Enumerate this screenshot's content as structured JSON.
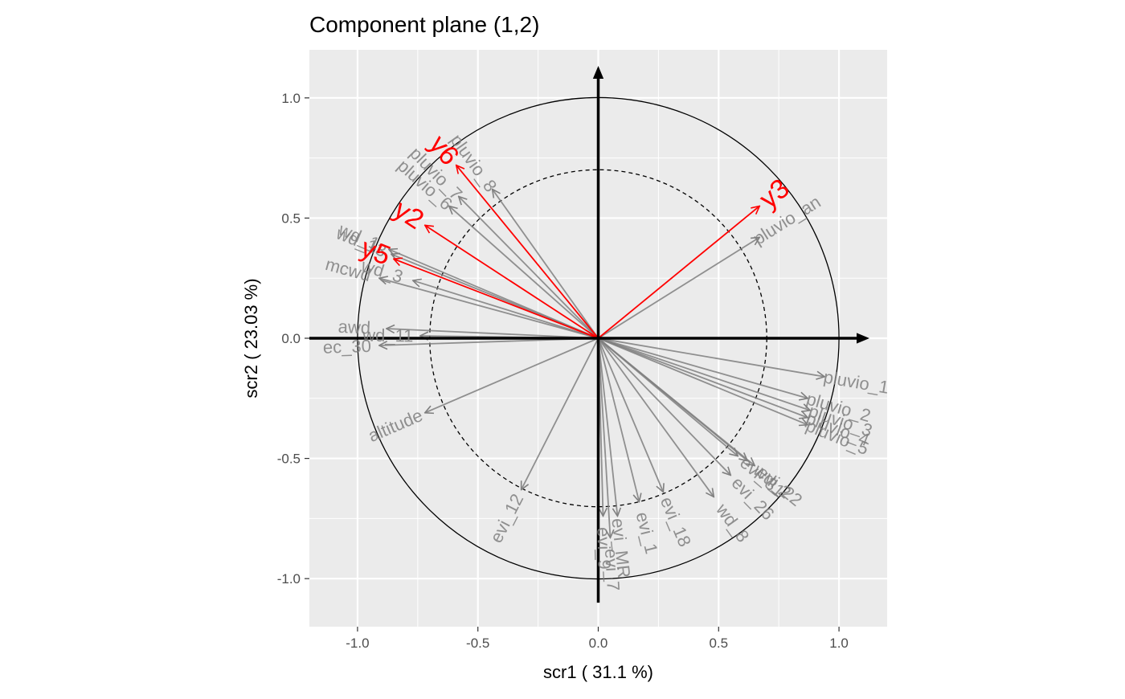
{
  "chart_data": {
    "type": "scatter",
    "subtype": "correlation-circle",
    "title": "Component plane (1,2)",
    "xlabel": "scr1 ( 31.1 %)",
    "ylabel": "scr2 ( 23.03 %)",
    "xlim": [
      -1.2,
      1.2
    ],
    "ylim": [
      -1.2,
      1.2
    ],
    "xticks": [
      -1.0,
      -0.5,
      0.0,
      0.5,
      1.0
    ],
    "yticks": [
      -1.0,
      -0.5,
      0.0,
      0.5,
      1.0
    ],
    "xtick_labels": [
      "-1.0",
      "-0.5",
      "0.0",
      "0.5",
      "1.0"
    ],
    "ytick_labels": [
      "-1.0",
      "-0.5",
      "0.0",
      "0.5",
      "1.0"
    ],
    "grid": true,
    "unit_circle_radius": 1.0,
    "inner_circle_radius": 0.7,
    "colors": {
      "panel": "#ebebeb",
      "grid": "#ffffff",
      "variables": "#7f7f7f",
      "responses": "#ff0000",
      "axes": "#000000"
    },
    "series": [
      {
        "kind": "variables",
        "points": [
          {
            "label": "pluvio_an",
            "x": 0.67,
            "y": 0.42
          },
          {
            "label": "pluvio_8",
            "x": -0.44,
            "y": 0.62
          },
          {
            "label": "pluvio_6",
            "x": -0.62,
            "y": 0.55
          },
          {
            "label": "pluvio_7",
            "x": -0.58,
            "y": 0.59
          },
          {
            "label": "wd_1",
            "x": -0.87,
            "y": 0.37
          },
          {
            "label": "wd_13",
            "x": -0.86,
            "y": 0.35
          },
          {
            "label": "mcwd",
            "x": -0.91,
            "y": 0.25
          },
          {
            "label": "wd_3",
            "x": -0.77,
            "y": 0.24
          },
          {
            "label": "awd",
            "x": -0.88,
            "y": 0.04
          },
          {
            "label": "wd_11",
            "x": -0.74,
            "y": 0.01
          },
          {
            "label": "ec_30",
            "x": -0.91,
            "y": -0.03
          },
          {
            "label": "altitude",
            "x": -0.72,
            "y": -0.31
          },
          {
            "label": "evi_12",
            "x": -0.32,
            "y": -0.63
          },
          {
            "label": "evi_9",
            "x": 0.02,
            "y": -0.74
          },
          {
            "label": "evi_MR",
            "x": 0.08,
            "y": -0.74
          },
          {
            "label": "evi_7",
            "x": 0.05,
            "y": -0.83
          },
          {
            "label": "evi_1",
            "x": 0.17,
            "y": -0.68
          },
          {
            "label": "evi_18",
            "x": 0.27,
            "y": -0.64
          },
          {
            "label": "wd_8",
            "x": 0.48,
            "y": -0.66
          },
          {
            "label": "evi_26",
            "x": 0.55,
            "y": -0.57
          },
          {
            "label": "wd_2",
            "x": 0.62,
            "y": -0.51
          },
          {
            "label": "evi_31",
            "x": 0.58,
            "y": -0.49
          },
          {
            "label": "evi_22",
            "x": 0.65,
            "y": -0.53
          },
          {
            "label": "pluvio_1",
            "x": 0.94,
            "y": -0.16
          },
          {
            "label": "pluvio_2",
            "x": 0.87,
            "y": -0.25
          },
          {
            "label": "pluvio_3",
            "x": 0.88,
            "y": -0.3
          },
          {
            "label": "pluvio_4",
            "x": 0.87,
            "y": -0.33
          },
          {
            "label": "pluvio_5",
            "x": 0.87,
            "y": -0.36
          }
        ]
      },
      {
        "kind": "responses",
        "points": [
          {
            "label": "y3",
            "x": 0.67,
            "y": 0.55
          },
          {
            "label": "y6",
            "x": -0.59,
            "y": 0.72
          },
          {
            "label": "y2",
            "x": -0.72,
            "y": 0.47
          },
          {
            "label": "y5",
            "x": -0.85,
            "y": 0.33
          }
        ]
      }
    ]
  }
}
